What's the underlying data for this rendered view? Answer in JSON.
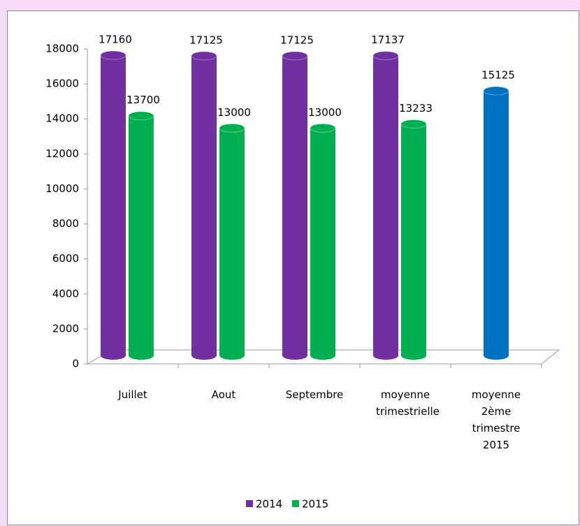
{
  "chart_data": {
    "type": "bar",
    "categories": [
      "Juillet",
      "Aout",
      "Septembre",
      "moyenne trimestrielle",
      "moyenne 2ème trimestre 2015"
    ],
    "series": [
      {
        "name": "2014",
        "color": "#7030a0",
        "values": [
          17160,
          17125,
          17125,
          17137,
          null
        ]
      },
      {
        "name": "2015",
        "color": "#00b050",
        "values": [
          13700,
          13000,
          13000,
          13233,
          null
        ]
      },
      {
        "color": "#0070c0",
        "values": [
          null,
          null,
          null,
          null,
          15125
        ]
      }
    ],
    "ylim": [
      0,
      18000
    ],
    "yticks": [
      0,
      2000,
      4000,
      6000,
      8000,
      10000,
      12000,
      14000,
      16000,
      18000
    ],
    "legend": "bottom"
  }
}
